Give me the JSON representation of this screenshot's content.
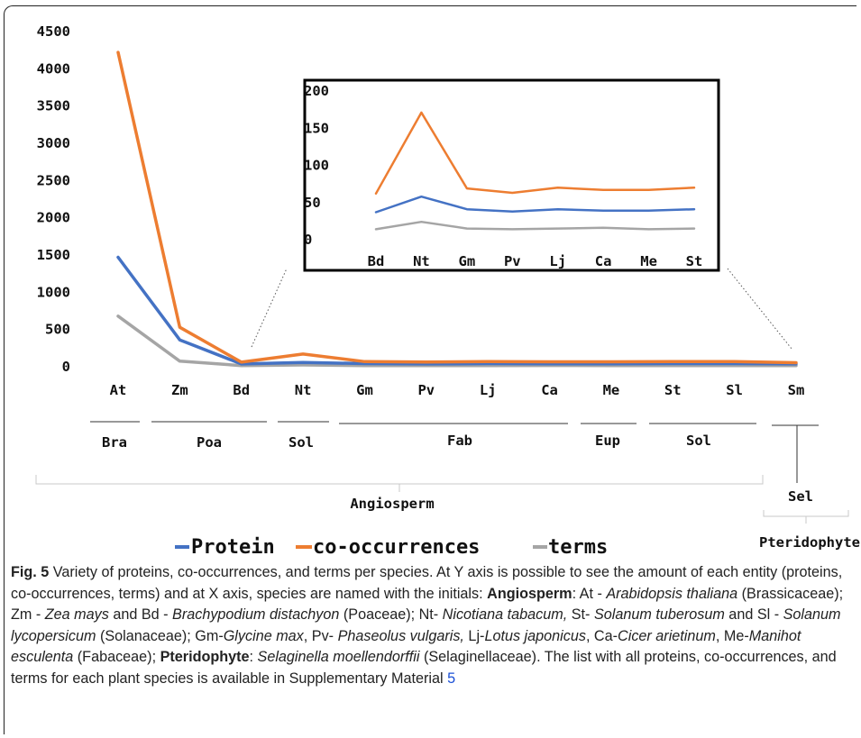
{
  "chart_data": [
    {
      "type": "line",
      "categories": [
        "At",
        "Zm",
        "Bd",
        "Nt",
        "Gm",
        "Pv",
        "Lj",
        "Ca",
        "Me",
        "St",
        "Sl",
        "Sm"
      ],
      "ylim": [
        0,
        4500
      ],
      "yticks": [
        "4500",
        "4000",
        "3500",
        "3000",
        "2500",
        "2000",
        "1500",
        "1000",
        "500",
        "0"
      ],
      "series": [
        {
          "name": "Protein",
          "color": "#4472c4",
          "values": [
            1470,
            360,
            38,
            58,
            42,
            38,
            42,
            39,
            39,
            42,
            42,
            38
          ]
        },
        {
          "name": "co-occurrences",
          "color": "#ed7d31",
          "values": [
            4220,
            530,
            62,
            170,
            69,
            63,
            70,
            67,
            67,
            70,
            70,
            55
          ]
        },
        {
          "name": "terms",
          "color": "#a5a5a5",
          "values": [
            680,
            75,
            16,
            24,
            16,
            15,
            16,
            17,
            15,
            16,
            16,
            15
          ]
        }
      ],
      "legend_position": "bottom"
    },
    {
      "type": "line",
      "role": "inset",
      "categories": [
        "Bd",
        "Nt",
        "Gm",
        "Pv",
        "Lj",
        "Ca",
        "Me",
        "St"
      ],
      "ylim": [
        0,
        200
      ],
      "yticks": [
        "200",
        "150",
        "100",
        "50",
        "0"
      ],
      "series": [
        {
          "name": "Protein",
          "color": "#4472c4",
          "values": [
            37,
            58,
            41,
            38,
            41,
            39,
            39,
            41
          ]
        },
        {
          "name": "co-occurrences",
          "color": "#ed7d31",
          "values": [
            62,
            171,
            69,
            63,
            70,
            67,
            67,
            70
          ]
        },
        {
          "name": "terms",
          "color": "#a5a5a5",
          "values": [
            14,
            24,
            15,
            14,
            15,
            16,
            14,
            15
          ]
        }
      ]
    }
  ],
  "groups": {
    "families": [
      "Bra",
      "Poa",
      "Sol",
      "Fab",
      "Eup",
      "Sol",
      "Sel"
    ],
    "clades": [
      "Angiosperm",
      "Pteridophyte"
    ]
  },
  "legend": {
    "protein": "Protein",
    "cooc": "co-occurrences",
    "terms": "terms"
  },
  "caption": {
    "label": "Fig. 5",
    "p1": " Variety of proteins, co-occurrences, and terms per species. At Y axis is possible to see the amount of each entity (proteins, co-occurrences, terms) and at X axis, species are named with the initials: ",
    "angio": "Angiosperm",
    "p2": ": At - ",
    "at": "Arabidopsis thaliana",
    "p3": " (Brassicaceae); Zm - ",
    "zm": "Zea mays",
    "p4": " and Bd - ",
    "bd": "Brachypodium distachyon",
    "p5": " (Poaceae); Nt- ",
    "nt": "Nicotiana tabacum,",
    "p6": " St- ",
    "st": "Solanum tuberosum",
    "p7": " and Sl - ",
    "sl": "Solanum lycopersicum",
    "p8": " (Solanaceae); Gm-",
    "gm": "Glycine max",
    "p9": ", Pv- ",
    "pv": "Phaseolus vulgaris,",
    "p10": " Lj-",
    "lj": "Lotus japonicus",
    "p11": ", Ca-",
    "ca": "Cicer arietinum",
    "p12": ", Me-",
    "me": "Manihot esculenta",
    "p13": " (Fabaceae); ",
    "pter": "Pteridophyte",
    "p14": ": ",
    "sm": "Selaginella moellendorffii",
    "p15": " (Selaginellaceae). The list with all proteins, co-occurrences, and terms for each plant species is available in Supplementary Material ",
    "link": "5"
  }
}
